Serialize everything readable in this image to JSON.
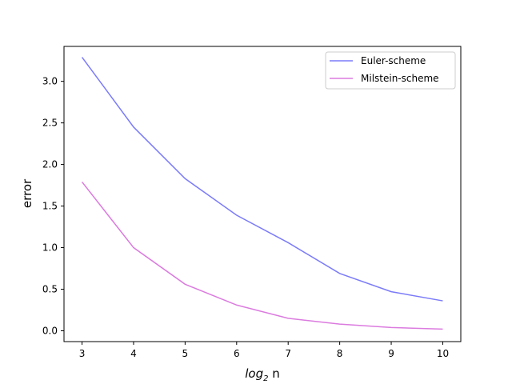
{
  "chart_data": {
    "type": "line",
    "x": [
      3,
      4,
      5,
      6,
      7,
      8,
      9,
      10
    ],
    "xticks": [
      "3",
      "4",
      "5",
      "6",
      "7",
      "8",
      "9",
      "10"
    ],
    "yticks": [
      "0.0",
      "0.5",
      "1.0",
      "1.5",
      "2.0",
      "2.5",
      "3.0"
    ],
    "xlim": [
      2.65,
      10.35
    ],
    "ylim": [
      -0.13,
      3.42
    ],
    "xlabel": {
      "base": "log",
      "sub": "2",
      "suffix": " n"
    },
    "ylabel": "error",
    "legend_position": "top-right",
    "grid": false,
    "series": [
      {
        "name": "Euler-scheme",
        "color": "#7b7bfa",
        "values": [
          3.29,
          2.45,
          1.83,
          1.39,
          1.06,
          0.69,
          0.47,
          0.36
        ]
      },
      {
        "name": "Milstein-scheme",
        "color": "#db7bdf",
        "values": [
          1.79,
          1.0,
          0.56,
          0.31,
          0.15,
          0.08,
          0.04,
          0.02
        ]
      }
    ]
  }
}
